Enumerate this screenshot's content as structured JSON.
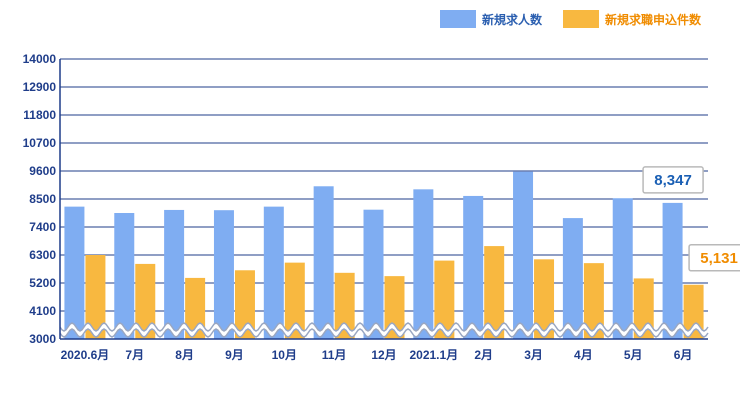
{
  "chart_data": {
    "type": "bar",
    "categories": [
      "2020.6月",
      "7月",
      "8月",
      "9月",
      "10月",
      "11月",
      "12月",
      "2021.1月",
      "2月",
      "3月",
      "4月",
      "5月",
      "6月"
    ],
    "series": [
      {
        "name": "新規求人数",
        "color": "#7fadf2",
        "values": [
          8200,
          7950,
          8070,
          8060,
          8200,
          9000,
          8080,
          8880,
          8620,
          9570,
          7750,
          8530,
          8347
        ]
      },
      {
        "name": "新規求職申込件数",
        "color": "#f8b840",
        "values": [
          6300,
          5950,
          5400,
          5700,
          6000,
          5600,
          5470,
          6080,
          6650,
          6130,
          5980,
          5380,
          5131
        ]
      }
    ],
    "yticks": [
      3000,
      4100,
      5200,
      6300,
      7400,
      8500,
      9600,
      10700,
      11800,
      12900,
      14000
    ],
    "ylim": [
      3000,
      14000
    ],
    "axis_break": true,
    "grid": true,
    "legend_position": "top-right",
    "callouts": [
      {
        "text": "8,347",
        "color": "#1a5fb4"
      },
      {
        "text": "5,131",
        "color": "#f08c00"
      }
    ],
    "colors": {
      "axis": "#1f3d8a",
      "tick_text": "#1f3d8a",
      "grid": "#1f3d8a"
    }
  }
}
